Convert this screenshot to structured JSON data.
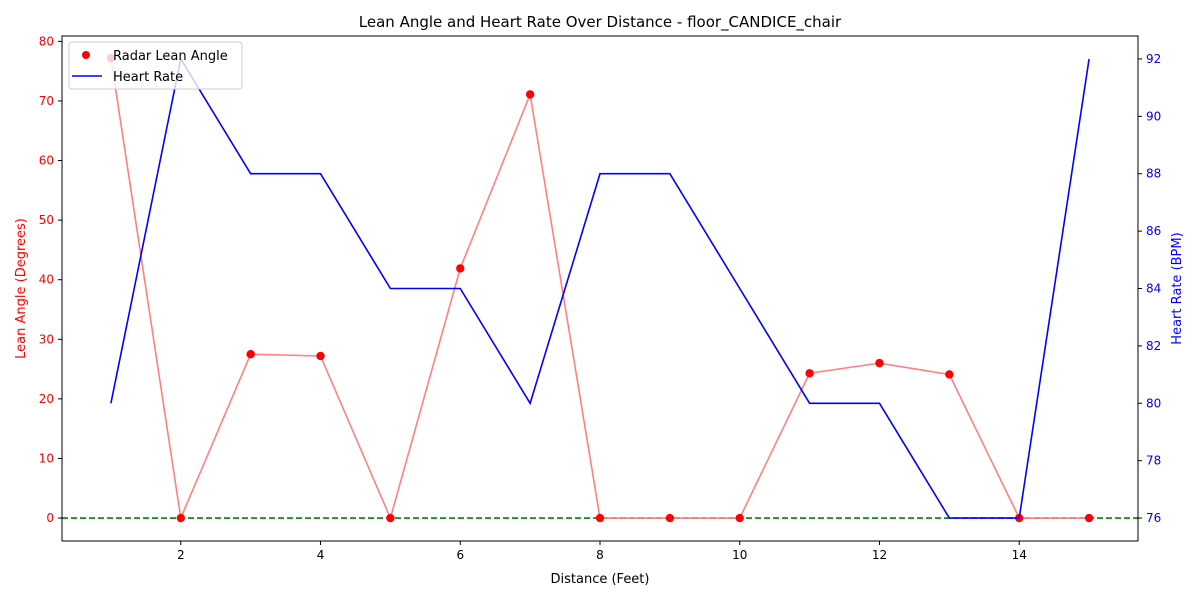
{
  "chart_data": {
    "type": "line",
    "title": "Lean Angle and Heart Rate Over Distance - floor_CANDICE_chair",
    "xlabel": "Distance (Feet)",
    "ylabel_left": "Lean Angle (Degrees)",
    "ylabel_right": "Heart Rate (BPM)",
    "xlim": [
      0.3,
      15.7
    ],
    "ylim_left": [
      -3.85,
      80.9
    ],
    "ylim_right": [
      75.2,
      92.8
    ],
    "x_ticks": [
      2,
      4,
      6,
      8,
      10,
      12,
      14
    ],
    "y_left_ticks": [
      0,
      10,
      20,
      30,
      40,
      50,
      60,
      70,
      80
    ],
    "y_right_ticks": [
      76,
      78,
      80,
      82,
      84,
      86,
      88,
      90,
      92
    ],
    "x": [
      1,
      2,
      3,
      4,
      5,
      6,
      7,
      8,
      9,
      10,
      11,
      12,
      13,
      14,
      15
    ],
    "series": [
      {
        "name": "Radar Lean Angle",
        "axis": "left",
        "style": "markers-with-line",
        "values": [
          77.2,
          0,
          27.5,
          27.2,
          0,
          41.9,
          71.1,
          0,
          0,
          0,
          24.3,
          26,
          24.1,
          0,
          0
        ]
      },
      {
        "name": "Heart Rate",
        "axis": "right",
        "style": "line",
        "values": [
          80,
          92,
          88,
          88,
          84,
          84,
          80,
          88,
          88,
          84,
          80,
          80,
          76,
          76,
          92
        ]
      }
    ],
    "reference_line": {
      "axis": "left",
      "value": 0,
      "color": "#008000",
      "style": "dashed"
    },
    "legend_position": "top-left",
    "grid": false,
    "colors": {
      "lean_marker": "#ff0000",
      "lean_line": "#ff8080",
      "heart_rate": "#0000ff",
      "left_axis": "#ff0000",
      "right_axis": "#0000ff"
    }
  }
}
